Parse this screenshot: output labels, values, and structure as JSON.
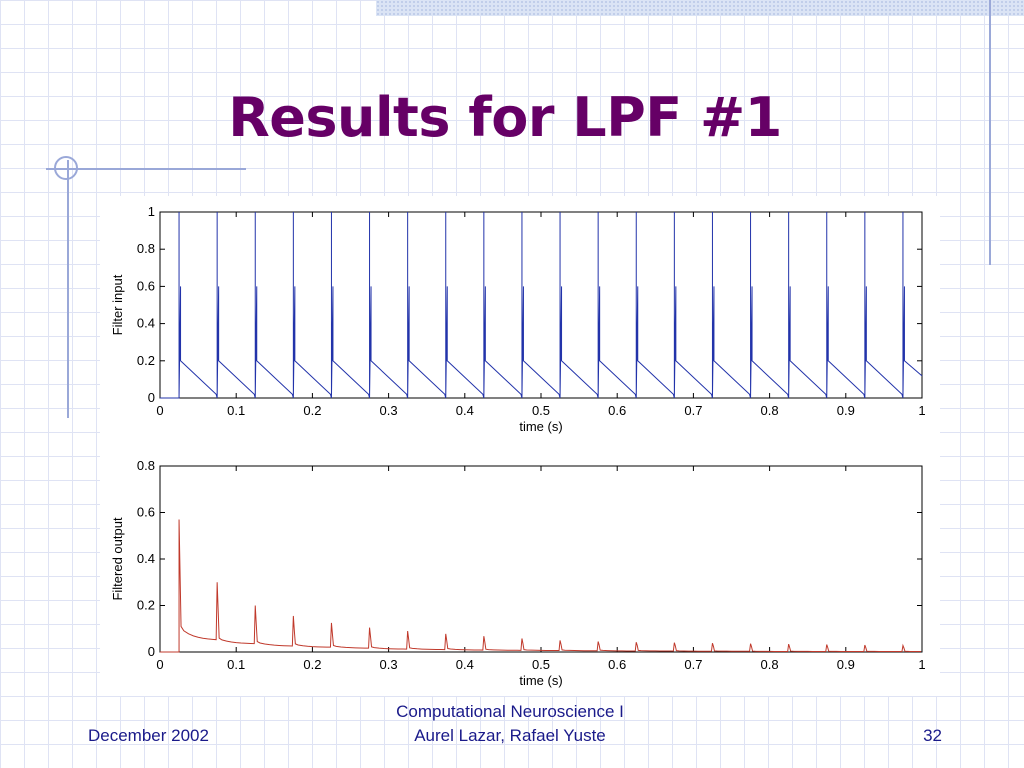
{
  "slide": {
    "title": "Results for LPF #1"
  },
  "footer": {
    "date": "December 2002",
    "course_line1": "Computational Neuroscience I",
    "course_line2": "Aurel Lazar, Rafael Yuste",
    "page_number": "32"
  },
  "colors": {
    "title": "#660066",
    "input_series": "#2233aa",
    "output_series": "#c0392b",
    "footer_text": "#1a1a8a"
  },
  "chart_data": [
    {
      "type": "line",
      "title": "",
      "xlabel": "time (s)",
      "ylabel": "Filter input",
      "xlim": [
        0,
        1
      ],
      "ylim": [
        0,
        1
      ],
      "xticks": [
        0,
        0.1,
        0.2,
        0.3,
        0.4,
        0.5,
        0.6,
        0.7,
        0.8,
        0.9,
        1
      ],
      "xtick_labels": [
        "0",
        "0.1",
        "0.2",
        "0.3",
        "0.4",
        "0.5",
        "0.6",
        "0.7",
        "0.8",
        "0.9",
        "1"
      ],
      "yticks": [
        0,
        0.2,
        0.4,
        0.6,
        0.8,
        1
      ],
      "ytick_labels": [
        "0",
        "0.2",
        "0.4",
        "0.6",
        "0.8",
        "1"
      ],
      "grid": false,
      "series": [
        {
          "spike_times": [
            0.025,
            0.075,
            0.125,
            0.175,
            0.225,
            0.275,
            0.325,
            0.375,
            0.425,
            0.475,
            0.525,
            0.575,
            0.625,
            0.675,
            0.725,
            0.775,
            0.825,
            0.875,
            0.925,
            0.975
          ],
          "spike_peak": 1.0,
          "spike_secondary": 0.6,
          "decay_start": 0.2,
          "decay_end": 0.02
        }
      ]
    },
    {
      "type": "line",
      "title": "",
      "xlabel": "time (s)",
      "ylabel": "Filtered output",
      "xlim": [
        0,
        1
      ],
      "ylim": [
        0,
        0.8
      ],
      "xticks": [
        0,
        0.1,
        0.2,
        0.3,
        0.4,
        0.5,
        0.6,
        0.7,
        0.8,
        0.9,
        1
      ],
      "xtick_labels": [
        "0",
        "0.1",
        "0.2",
        "0.3",
        "0.4",
        "0.5",
        "0.6",
        "0.7",
        "0.8",
        "0.9",
        "1"
      ],
      "yticks": [
        0,
        0.2,
        0.4,
        0.6,
        0.8
      ],
      "ytick_labels": [
        "0",
        "0.2",
        "0.4",
        "0.6",
        "0.8"
      ],
      "grid": false,
      "series": [
        {
          "spike_times": [
            0.025,
            0.075,
            0.125,
            0.175,
            0.225,
            0.275,
            0.325,
            0.375,
            0.425,
            0.475,
            0.525,
            0.575,
            0.625,
            0.675,
            0.725,
            0.775,
            0.825,
            0.875,
            0.925,
            0.975
          ],
          "peaks": [
            0.57,
            0.3,
            0.2,
            0.155,
            0.125,
            0.105,
            0.09,
            0.078,
            0.068,
            0.058,
            0.05,
            0.045,
            0.042,
            0.04,
            0.038,
            0.036,
            0.034,
            0.032,
            0.03,
            0.028
          ],
          "secondary": [
            0.34,
            0.18,
            0.12,
            0.09,
            0.075,
            0.065,
            0.055,
            0.048,
            0.042,
            0.036,
            0.032,
            0.03,
            0.028,
            0.026,
            0.024,
            0.022,
            0.02,
            0.019,
            0.018,
            0.017
          ],
          "base_after": [
            0.11,
            0.06,
            0.045,
            0.035,
            0.028,
            0.022,
            0.018,
            0.015,
            0.012,
            0.01,
            0.009,
            0.008,
            0.007,
            0.006,
            0.005,
            0.004,
            0.004,
            0.003,
            0.003,
            0.003
          ],
          "base_before_next": [
            0.05,
            0.035,
            0.025,
            0.02,
            0.016,
            0.012,
            0.01,
            0.008,
            0.007,
            0.006,
            0.005,
            0.004,
            0.004,
            0.003,
            0.003,
            0.002,
            0.002,
            0.002,
            0.002,
            0.002
          ]
        }
      ]
    }
  ]
}
